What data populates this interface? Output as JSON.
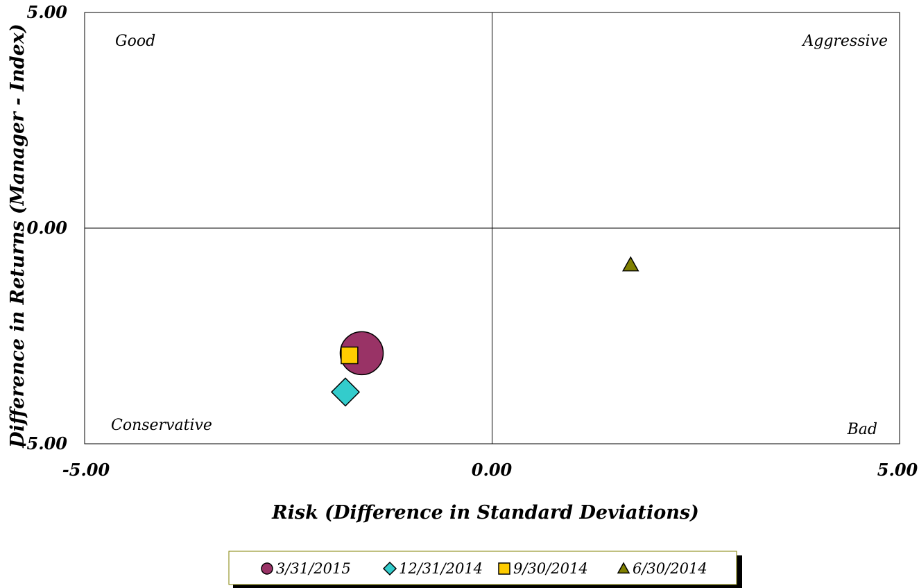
{
  "chart_data": {
    "type": "scatter",
    "title": "",
    "xlabel": "Risk (Difference in Standard Deviations)",
    "ylabel": "Difference in Returns (Manager - Index)",
    "xlim": [
      -5,
      5
    ],
    "ylim": [
      -5,
      5
    ],
    "x_ticks": [
      "-5.00",
      "0.00",
      "5.00"
    ],
    "y_ticks": [
      "5.00",
      "0.00",
      "-5.00"
    ],
    "grid": false,
    "legend_position": "bottom",
    "quadrant_labels": {
      "top_left": "Good",
      "top_right": "Aggressive",
      "bottom_left": "Conservative",
      "bottom_right": "Bad"
    },
    "series": [
      {
        "name": "3/31/2015",
        "marker": "circle",
        "color": "#993366",
        "x": -1.6,
        "y": -2.9
      },
      {
        "name": "12/31/2014",
        "marker": "diamond",
        "color": "#33cccc",
        "x": -1.8,
        "y": -3.8
      },
      {
        "name": "9/30/2014",
        "marker": "square",
        "color": "#ffcc00",
        "x": -1.75,
        "y": -2.95
      },
      {
        "name": "6/30/2014",
        "marker": "triangle",
        "color": "#808000",
        "x": 1.7,
        "y": -0.85
      }
    ]
  }
}
